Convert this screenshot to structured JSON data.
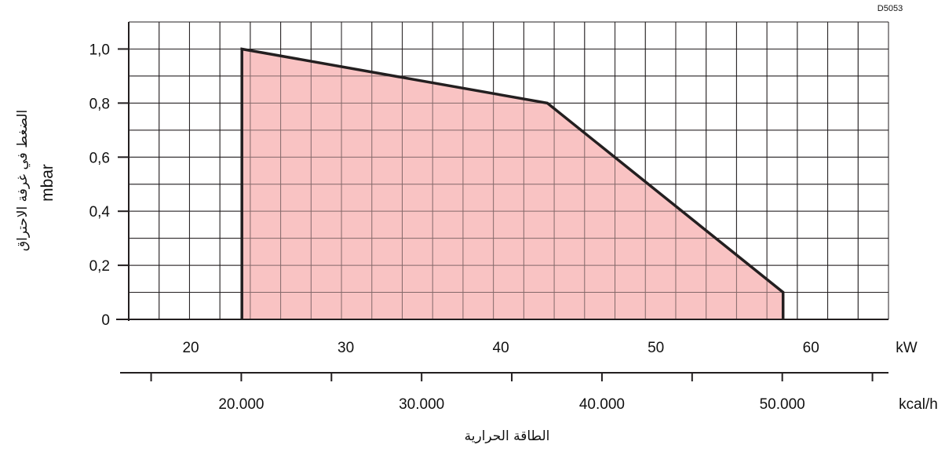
{
  "chart_data": {
    "type": "area",
    "drawing_code": "D5053",
    "ylabel": "الضغط في غرفة الاحتراق",
    "yunit": "mbar",
    "xlabel": "الطاقة الحرارية",
    "x_unit": "kW",
    "x2_unit": "kcal/h",
    "ylim": [
      0,
      1.1
    ],
    "xlim": [
      16,
      65
    ],
    "yticks": [
      0,
      0.2,
      0.4,
      0.6,
      0.8,
      1.0
    ],
    "ytick_labels": [
      "0",
      "0,2",
      "0,4",
      "0,6",
      "0,8",
      "1,0"
    ],
    "xticks": [
      20,
      30,
      40,
      50,
      60
    ],
    "xtick_labels": [
      "20",
      "30",
      "40",
      "50",
      "60"
    ],
    "x2ticks": [
      20000,
      30000,
      40000,
      50000
    ],
    "x2tick_labels": [
      "20.000",
      "30.000",
      "40.000",
      "50.000"
    ],
    "grid": true,
    "fill_color": "#f9c3c3",
    "line_color": "#231f20",
    "series": [
      {
        "x": [
          23.3,
          23.3,
          43.0,
          58.2,
          58.2
        ],
        "y": [
          0,
          1.0,
          0.8,
          0.1,
          0
        ]
      }
    ]
  }
}
